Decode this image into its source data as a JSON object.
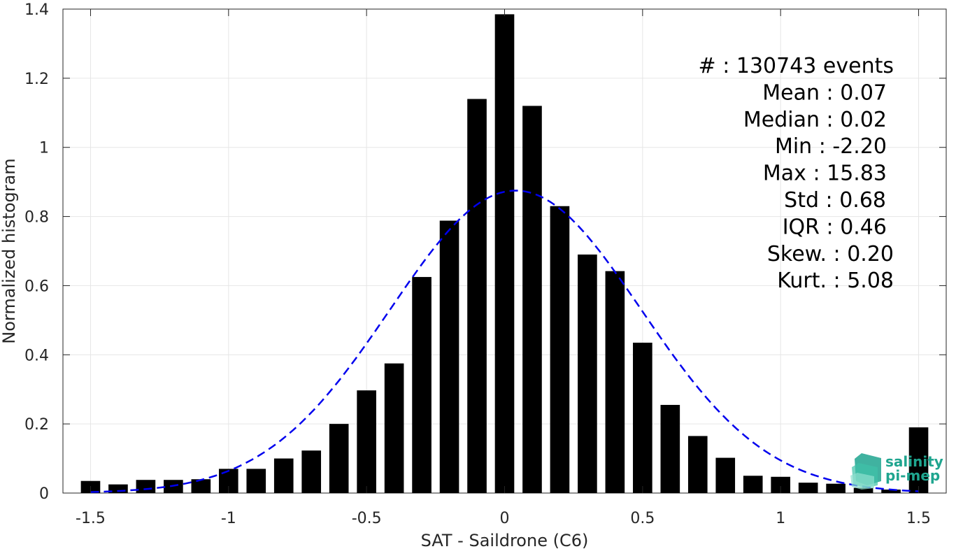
{
  "chart_data": {
    "type": "bar",
    "xlabel": "SAT - Saildrone (C6)",
    "ylabel": "Normalized histogram",
    "xlim": [
      -1.6,
      1.6
    ],
    "ylim": [
      0,
      1.4
    ],
    "grid": true,
    "xticks": [
      -1.5,
      -1,
      -0.5,
      0,
      0.5,
      1,
      1.5
    ],
    "xtick_labels": [
      "-1.5",
      "-1",
      "-0.5",
      "0",
      "0.5",
      "1",
      "1.5"
    ],
    "yticks": [
      0,
      0.2,
      0.4,
      0.6,
      0.8,
      1,
      1.2,
      1.4
    ],
    "ytick_labels": [
      "0",
      "0.2",
      "0.4",
      "0.6",
      "0.8",
      "1",
      "1.2",
      "1.4"
    ],
    "bar_width": 0.07,
    "bars": {
      "x": [
        -1.5,
        -1.4,
        -1.3,
        -1.2,
        -1.1,
        -1.0,
        -0.9,
        -0.8,
        -0.7,
        -0.6,
        -0.5,
        -0.4,
        -0.3,
        -0.2,
        -0.1,
        0.0,
        0.1,
        0.2,
        0.3,
        0.4,
        0.5,
        0.6,
        0.7,
        0.8,
        0.9,
        1.0,
        1.1,
        1.2,
        1.3,
        1.4,
        1.5
      ],
      "values": [
        0.035,
        0.025,
        0.038,
        0.038,
        0.04,
        0.07,
        0.07,
        0.1,
        0.123,
        0.2,
        0.297,
        0.375,
        0.625,
        0.788,
        1.14,
        1.385,
        1.12,
        0.83,
        0.69,
        0.642,
        0.435,
        0.255,
        0.165,
        0.102,
        0.05,
        0.047,
        0.03,
        0.027,
        0.015,
        0.01,
        0.19
      ],
      "color": "#000000"
    },
    "fit_curve": {
      "type": "gaussian",
      "mean": 0.04,
      "std": 0.455,
      "peak": 0.875,
      "x_range": [
        -1.5,
        1.5
      ],
      "color": "#0000ee",
      "style": "dashed"
    },
    "stats_lines": [
      "#  : 130743 events",
      "Mean : 0.07",
      "Median : 0.02",
      "Min : -2.20",
      "Max : 15.83",
      "Std : 0.68",
      "IQR : 0.46",
      "Skew. : 0.20",
      "Kurt. : 5.08"
    ]
  },
  "logo": {
    "line1": "salinity",
    "line2": "pi-mep",
    "color": "#1fa58f"
  }
}
